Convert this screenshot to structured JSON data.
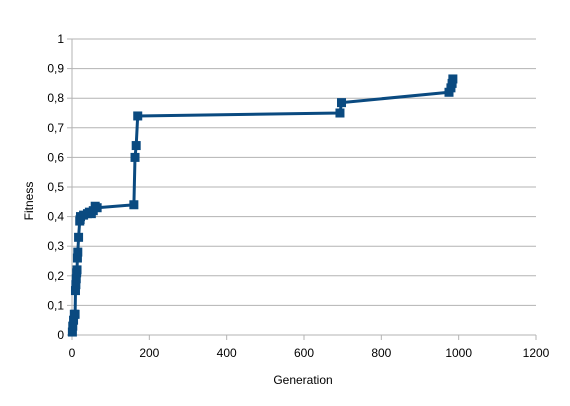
{
  "chart_data": {
    "type": "line",
    "title": "",
    "xlabel": "Generation",
    "ylabel": "Fitness",
    "xlim": [
      0,
      1200
    ],
    "ylim": [
      0,
      1
    ],
    "xticks": [
      0,
      200,
      400,
      600,
      800,
      1000,
      1200
    ],
    "yticks": [
      0,
      0.1,
      0.2,
      0.3,
      0.4,
      0.5,
      0.6,
      0.7,
      0.8,
      0.9,
      1
    ],
    "ytick_labels": [
      "0",
      "0,1",
      "0,2",
      "0,3",
      "0,4",
      "0,5",
      "0,6",
      "0,7",
      "0,8",
      "0,9",
      "1"
    ],
    "xtick_labels": [
      "0",
      "200",
      "400",
      "600",
      "800",
      "1000",
      "1200"
    ],
    "grid": true,
    "legend": "none",
    "series": [
      {
        "color": "#0a4a80",
        "marker": "square",
        "points": [
          [
            1,
            0.01
          ],
          [
            2,
            0.03
          ],
          [
            4,
            0.05
          ],
          [
            6,
            0.07
          ],
          [
            8,
            0.07
          ],
          [
            9,
            0.15
          ],
          [
            10,
            0.17
          ],
          [
            11,
            0.19
          ],
          [
            12,
            0.21
          ],
          [
            13,
            0.22
          ],
          [
            14,
            0.26
          ],
          [
            15,
            0.28
          ],
          [
            17,
            0.33
          ],
          [
            20,
            0.385
          ],
          [
            21,
            0.39
          ],
          [
            22,
            0.4
          ],
          [
            30,
            0.405
          ],
          [
            40,
            0.41
          ],
          [
            45,
            0.415
          ],
          [
            50,
            0.41
          ],
          [
            55,
            0.42
          ],
          [
            60,
            0.435
          ],
          [
            65,
            0.43
          ],
          [
            160,
            0.44
          ],
          [
            163,
            0.6
          ],
          [
            166,
            0.64
          ],
          [
            170,
            0.74
          ],
          [
            693,
            0.75
          ],
          [
            697,
            0.785
          ],
          [
            975,
            0.82
          ],
          [
            980,
            0.835
          ],
          [
            983,
            0.85
          ],
          [
            985,
            0.865
          ]
        ]
      }
    ]
  }
}
